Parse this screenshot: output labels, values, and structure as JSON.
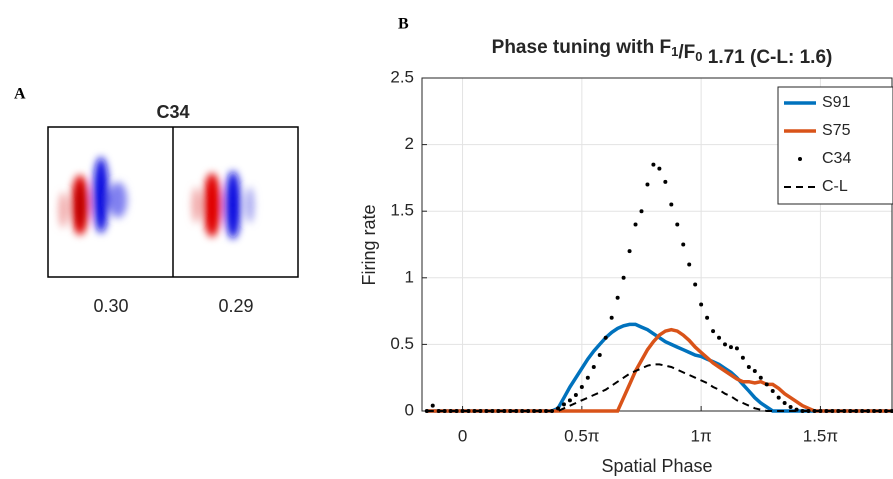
{
  "panel_a": {
    "label": "A",
    "title": "C34",
    "values": [
      "0.30",
      "0.29"
    ]
  },
  "chart_data": {
    "type": "line",
    "panel_label": "B",
    "title": "Phase tuning with F1/F0 1.71 (C-L: 1.6)",
    "xlabel": "Spatial Phase",
    "ylabel": "Firing rate",
    "x": [
      -0.15,
      -0.125,
      -0.1,
      -0.075,
      -0.05,
      -0.025,
      0,
      0.025,
      0.05,
      0.075,
      0.1,
      0.125,
      0.15,
      0.175,
      0.2,
      0.225,
      0.25,
      0.275,
      0.3,
      0.325,
      0.35,
      0.375,
      0.4,
      0.425,
      0.45,
      0.475,
      0.5,
      0.525,
      0.55,
      0.575,
      0.6,
      0.625,
      0.65,
      0.675,
      0.7,
      0.725,
      0.75,
      0.775,
      0.8,
      0.825,
      0.85,
      0.875,
      0.9,
      0.925,
      0.95,
      0.975,
      1,
      1.025,
      1.05,
      1.075,
      1.1,
      1.125,
      1.15,
      1.175,
      1.2,
      1.225,
      1.25,
      1.275,
      1.3,
      1.325,
      1.35,
      1.375,
      1.4,
      1.425,
      1.45,
      1.475,
      1.5,
      1.525,
      1.55,
      1.575,
      1.6,
      1.625,
      1.65,
      1.675,
      1.7,
      1.725,
      1.75,
      1.775,
      1.8
    ],
    "series": [
      {
        "name": "S91",
        "color": "#0072bd",
        "linestyle": "solid",
        "values": [
          0,
          0,
          0,
          0,
          0,
          0,
          0,
          0,
          0,
          0,
          0,
          0,
          0,
          0,
          0,
          0,
          0,
          0,
          0,
          0,
          0,
          0,
          0.02,
          0.1,
          0.18,
          0.25,
          0.32,
          0.39,
          0.45,
          0.5,
          0.55,
          0.59,
          0.62,
          0.64,
          0.65,
          0.65,
          0.63,
          0.61,
          0.58,
          0.55,
          0.52,
          0.5,
          0.48,
          0.46,
          0.44,
          0.42,
          0.41,
          0.39,
          0.37,
          0.35,
          0.32,
          0.29,
          0.25,
          0.2,
          0.15,
          0.1,
          0.06,
          0.03,
          0,
          0,
          0,
          0,
          0,
          0,
          0,
          0,
          0,
          0,
          0,
          0,
          0,
          0,
          0,
          0,
          0,
          0,
          0,
          0,
          0
        ]
      },
      {
        "name": "S75",
        "color": "#d95319",
        "linestyle": "solid",
        "values": [
          0,
          0,
          0,
          0,
          0,
          0,
          0,
          0,
          0,
          0,
          0,
          0,
          0,
          0,
          0,
          0,
          0,
          0,
          0,
          0,
          0,
          0,
          0,
          0,
          0,
          0,
          0,
          0,
          0,
          0,
          0,
          0,
          0,
          0.1,
          0.2,
          0.3,
          0.38,
          0.46,
          0.52,
          0.57,
          0.6,
          0.61,
          0.6,
          0.57,
          0.53,
          0.48,
          0.44,
          0.4,
          0.36,
          0.33,
          0.3,
          0.27,
          0.24,
          0.22,
          0.22,
          0.21,
          0.22,
          0.2,
          0.2,
          0.17,
          0.13,
          0.1,
          0.07,
          0.04,
          0.02,
          0,
          0,
          0,
          0,
          0,
          0,
          0,
          0,
          0,
          0,
          0,
          0,
          0,
          0
        ]
      },
      {
        "name": "C34",
        "color": "#000000",
        "linestyle": "dots",
        "values": [
          0,
          0.04,
          0,
          0,
          0,
          0,
          0,
          0,
          0,
          0,
          0,
          0,
          0,
          0,
          0,
          0,
          0,
          0,
          0,
          0,
          0,
          0,
          0.02,
          0.05,
          0.08,
          0.12,
          0.18,
          0.25,
          0.33,
          0.42,
          0.55,
          0.7,
          0.85,
          1.0,
          1.2,
          1.4,
          1.5,
          1.7,
          1.85,
          1.82,
          1.72,
          1.55,
          1.4,
          1.25,
          1.1,
          0.95,
          0.8,
          0.7,
          0.6,
          0.55,
          0.5,
          0.48,
          0.47,
          0.4,
          0.33,
          0.3,
          0.25,
          0.2,
          0.15,
          0.1,
          0.06,
          0.03,
          0.01,
          0,
          0,
          0,
          0,
          0,
          0,
          0,
          0,
          0,
          0,
          0,
          0,
          0,
          0,
          0,
          0
        ]
      },
      {
        "name": "C-L",
        "color": "#000000",
        "linestyle": "dashed",
        "values": [
          0,
          0,
          0,
          0,
          0,
          0,
          0,
          0,
          0,
          0,
          0,
          0,
          0,
          0,
          0,
          0,
          0,
          0,
          0,
          0,
          0,
          0,
          0,
          0.02,
          0.04,
          0.06,
          0.08,
          0.1,
          0.12,
          0.14,
          0.16,
          0.19,
          0.22,
          0.25,
          0.28,
          0.3,
          0.32,
          0.34,
          0.35,
          0.35,
          0.34,
          0.33,
          0.31,
          0.29,
          0.27,
          0.25,
          0.23,
          0.21,
          0.18,
          0.16,
          0.13,
          0.11,
          0.08,
          0.06,
          0.04,
          0.02,
          0.01,
          0,
          0,
          0,
          0,
          0,
          0,
          0,
          0,
          0,
          0,
          0,
          0,
          0,
          0,
          0,
          0,
          0,
          0,
          0,
          0,
          0,
          0
        ]
      }
    ],
    "xlim": [
      -0.17,
      1.8
    ],
    "ylim": [
      0,
      2.5
    ],
    "xticks": [
      0,
      {
        "value": 0.5,
        "label": "0.5π"
      },
      {
        "value": 1,
        "label": "1π"
      },
      {
        "value": 1.5,
        "label": "1.5π"
      }
    ],
    "yticks": [
      0,
      0.5,
      1,
      1.5,
      2,
      2.5
    ],
    "grid": true,
    "legend": "upper right"
  }
}
